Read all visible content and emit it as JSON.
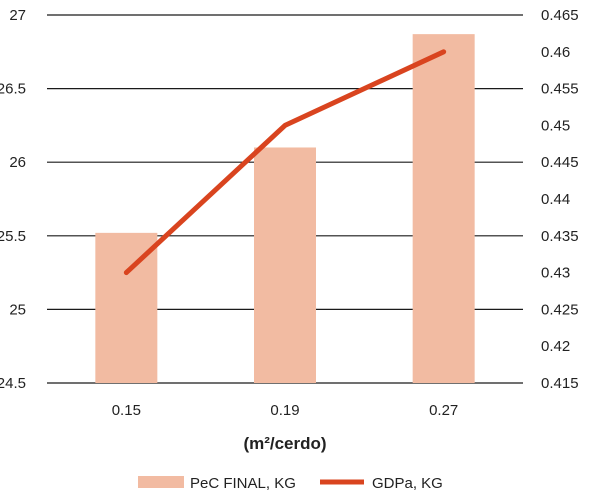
{
  "chart_data": {
    "type": "bar",
    "categories": [
      "0.15",
      "0.19",
      "0.27"
    ],
    "xlabel": "(m²/cerdo)",
    "series": [
      {
        "name": "PeC FINAL, KG",
        "type": "bar",
        "axis": "left",
        "values": [
          25.52,
          26.1,
          26.87
        ],
        "color": "#f2bba2"
      },
      {
        "name": "GDPa, KG",
        "type": "line",
        "axis": "right",
        "values": [
          0.43,
          0.45,
          0.46
        ],
        "color": "#d9441f"
      }
    ],
    "y_left": {
      "ylim": [
        24.5,
        27
      ],
      "ticks": [
        "24.5",
        "25",
        "25.5",
        "26",
        "26.5",
        "27"
      ]
    },
    "y_right": {
      "ylim": [
        0.415,
        0.465
      ],
      "ticks": [
        "0.415",
        "0.42",
        "0.425",
        "0.43",
        "0.435",
        "0.44",
        "0.445",
        "0.45",
        "0.455",
        "0.46",
        "0.465"
      ]
    },
    "grid": true,
    "legend": "bottom"
  }
}
